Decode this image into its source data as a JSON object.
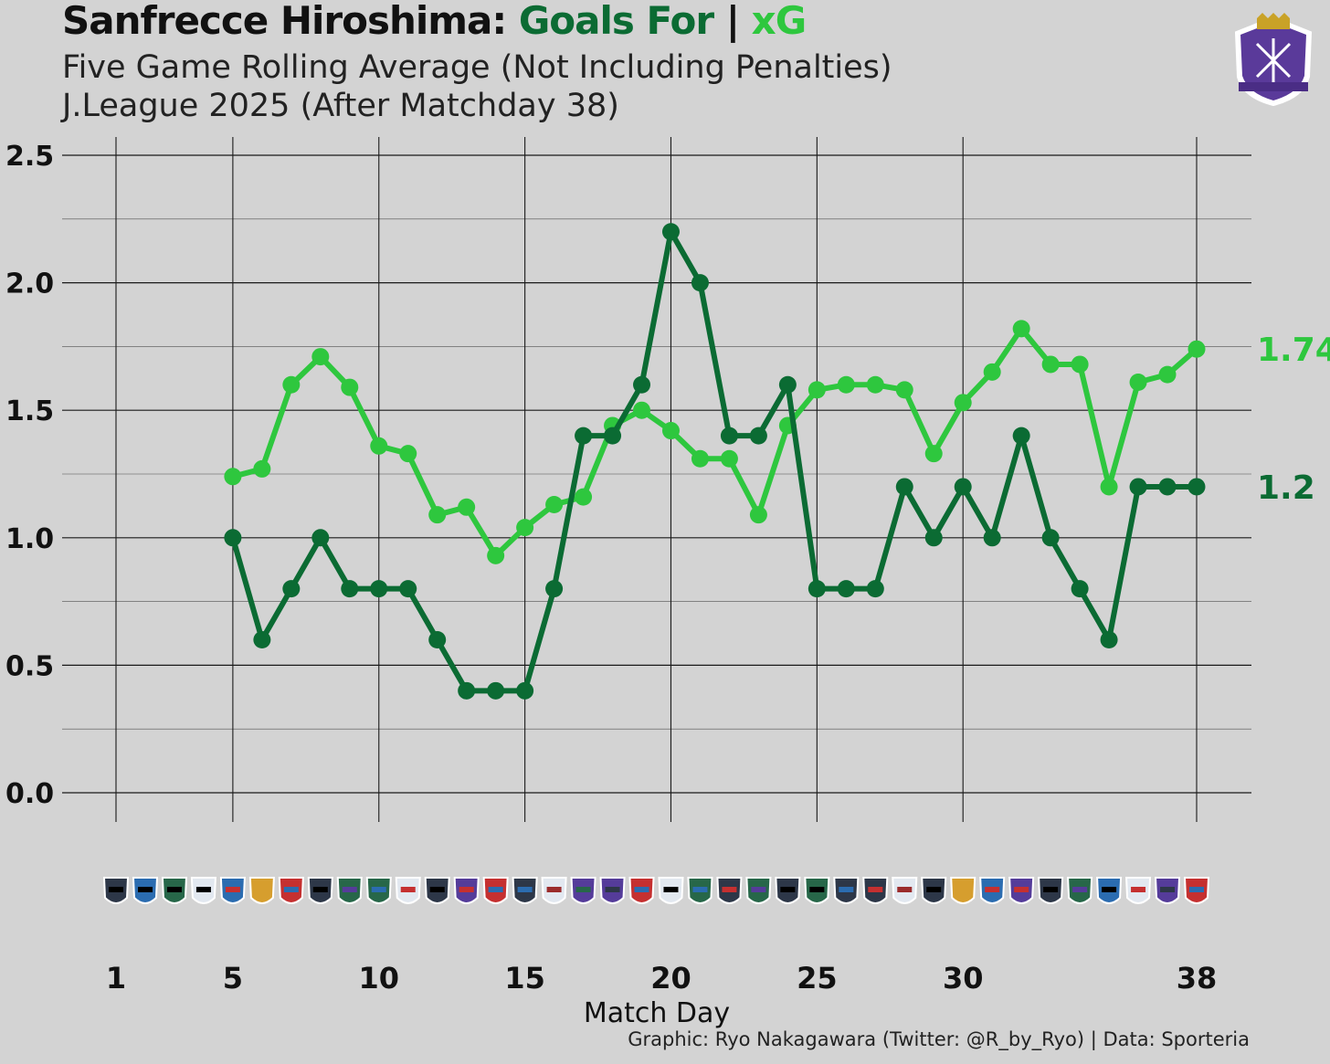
{
  "header": {
    "team": "Sanfrecce Hiroshima:",
    "goals_label": "Goals For",
    "separator": "|",
    "xg_label": "xG",
    "subtitle": "Five Game Rolling Average (Not Including Penalties)",
    "subtitle2": "J.League 2025 (After Matchday 38)"
  },
  "caption": "Graphic: Ryo Nakagawara (Twitter: @R_by_Ryo) | Data: Sporteria",
  "crest_text": "SANFRECCE HIROSHIMA",
  "colors": {
    "background": "#d3d3d3",
    "goals": "#0b6b33",
    "xg": "#2ec73e",
    "grid": "#1a1a1a",
    "crest": "#5a3a9a"
  },
  "chart_data": {
    "type": "line",
    "xlabel": "Match Day",
    "ylabel": "",
    "xlim": [
      1,
      38
    ],
    "ylim": [
      0,
      2.5
    ],
    "x_ticks": [
      1,
      5,
      10,
      15,
      20,
      25,
      30,
      38
    ],
    "y_ticks": [
      0.0,
      0.5,
      1.0,
      1.5,
      2.0,
      2.5
    ],
    "y_tick_labels": [
      "0.0",
      "0.5",
      "1.0",
      "1.5",
      "2.0",
      "2.5"
    ],
    "grid": true,
    "x": [
      5,
      6,
      7,
      8,
      9,
      10,
      11,
      12,
      13,
      14,
      15,
      16,
      17,
      18,
      19,
      20,
      21,
      22,
      23,
      24,
      25,
      26,
      27,
      28,
      29,
      30,
      31,
      32,
      33,
      34,
      35,
      36,
      37,
      38
    ],
    "series": [
      {
        "name": "Goals For",
        "color": "#0b6b33",
        "end_label": "1.2",
        "values": [
          1.0,
          0.6,
          0.8,
          1.0,
          0.8,
          0.8,
          0.8,
          0.6,
          0.4,
          0.4,
          0.4,
          0.8,
          1.4,
          1.4,
          1.6,
          2.2,
          2.0,
          1.4,
          1.4,
          1.6,
          0.8,
          0.8,
          0.8,
          1.2,
          1.0,
          1.2,
          1.0,
          1.4,
          1.0,
          0.8,
          0.6,
          1.2,
          1.2,
          1.2
        ]
      },
      {
        "name": "xG",
        "color": "#2ec73e",
        "end_label": "1.74",
        "values": [
          1.24,
          1.27,
          1.6,
          1.71,
          1.59,
          1.36,
          1.33,
          1.09,
          1.12,
          0.93,
          1.04,
          1.13,
          1.16,
          1.44,
          1.5,
          1.42,
          1.31,
          1.31,
          1.09,
          1.44,
          1.58,
          1.6,
          1.6,
          1.58,
          1.33,
          1.53,
          1.65,
          1.82,
          1.68,
          1.68,
          1.2,
          1.61,
          1.64,
          1.74
        ]
      }
    ],
    "opponents": [
      "Machida",
      "Yokohama FM",
      "Shimizu",
      "Yokohama FC",
      "Kashiwa",
      "Kashima",
      "Okayama",
      "Cerezo Osaka",
      "FC Tokyo",
      "Nagoya",
      "Urawa",
      "Niigata",
      "Fukuoka",
      "Shonan",
      "Gamba Osaka",
      "Tokyo Verdy",
      "Kyoto",
      "Kawasaki",
      "Okayama",
      "Yokohama FC",
      "Nagoya",
      "Vissel Kobe",
      "FC Tokyo",
      "Niigata",
      "Shimizu",
      "Gamba Osaka",
      "Vissel Kobe",
      "Tokyo Verdy",
      "Cerezo Osaka",
      "Kashima",
      "Kashiwa",
      "Fukuoka",
      "Machida",
      "FC Tokyo",
      "Yokohama FM",
      "Urawa",
      "Kawasaki",
      "Shonan"
    ]
  }
}
